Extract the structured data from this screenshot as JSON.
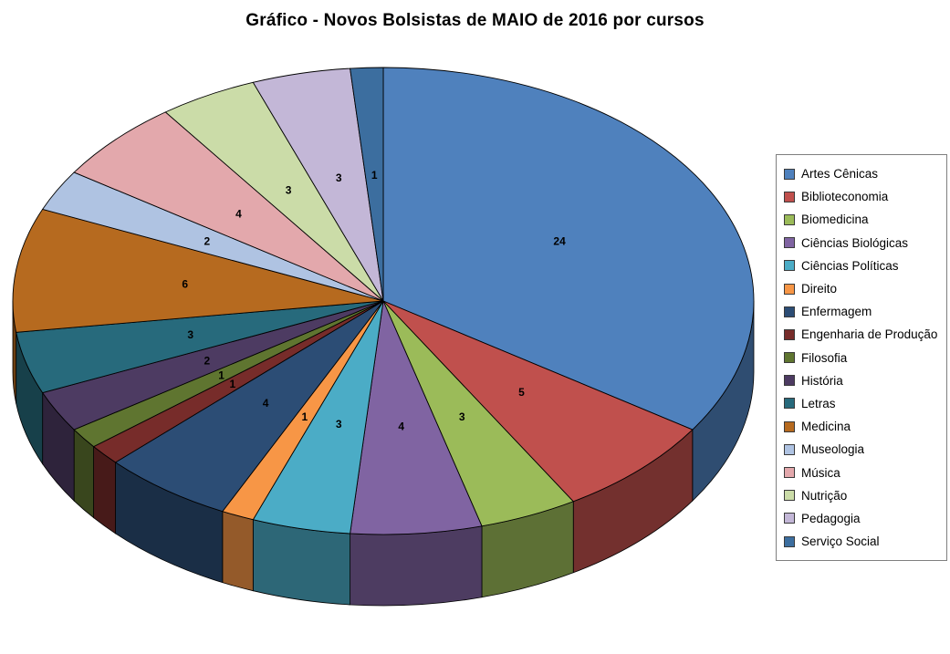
{
  "chart_data": {
    "type": "pie",
    "style": "3d",
    "title": "Gráfico - Novos Bolsistas de MAIO de 2016 por cursos",
    "categories": [
      "Artes Cênicas",
      "Biblioteconomia",
      "Biomedicina",
      "Ciências Biológicas",
      "Ciências Políticas",
      "Direito",
      "Enfermagem",
      "Engenharia de Produção",
      "Filosofia",
      "História",
      "Letras",
      "Medicina",
      "Museologia",
      "Música",
      "Nutrição",
      "Pedagogia",
      "Serviço Social"
    ],
    "values": [
      24,
      5,
      3,
      4,
      3,
      1,
      4,
      1,
      1,
      2,
      3,
      6,
      2,
      4,
      3,
      3,
      1
    ],
    "colors": [
      "#4F81BD",
      "#C0504D",
      "#9BBB59",
      "#8064A2",
      "#4BACC6",
      "#F79646",
      "#2C4D75",
      "#772C2A",
      "#5F7530",
      "#4D3B62",
      "#276A7C",
      "#B66A1F",
      "#AFC3E2",
      "#E3A8AC",
      "#CBDCA8",
      "#C3B7D7",
      "#3C6E9F"
    ],
    "data_labels": "values",
    "start_angle": -90,
    "direction": "clockwise",
    "legend_position": "right"
  }
}
